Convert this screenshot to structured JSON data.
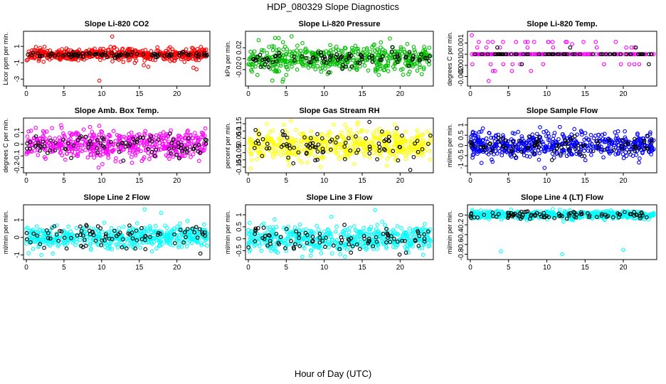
{
  "page": {
    "title": "HDP_080329  Slope Diagnostics",
    "xlabel": "Hour of Day (UTC)"
  },
  "chart_data": [
    {
      "type": "scatter",
      "title": "Slope Li-820 CO2",
      "ylabel": "Licor ppm per min.",
      "color": "#ff0000",
      "xlim": [
        0,
        24
      ],
      "ylim": [
        -3.5,
        2.5
      ],
      "xticks": [
        0,
        5,
        10,
        15,
        20
      ],
      "yticks": [
        1,
        -1,
        -3
      ],
      "n_points": 520,
      "center": 0.0,
      "spread": 0.35,
      "n_overlay": 90,
      "overlay_spread": 0.15,
      "outliers": [
        [
          11.4,
          2.2
        ],
        [
          9.7,
          -3.2
        ],
        [
          22.6,
          -1.8
        ],
        [
          22.2,
          -1.6
        ],
        [
          16.2,
          -1.5
        ],
        [
          15.6,
          -1.3
        ],
        [
          14.4,
          -1.0
        ],
        [
          21.0,
          -0.9
        ],
        [
          11.7,
          0.9
        ]
      ]
    },
    {
      "type": "scatter",
      "title": "Slope Li-820 Pressure",
      "ylabel": "kPa per min.",
      "color": "#00c000",
      "xlim": [
        0,
        24
      ],
      "ylim": [
        -0.045,
        0.045
      ],
      "xticks": [
        0,
        5,
        10,
        15,
        20
      ],
      "yticks": [
        0.02,
        0.0,
        -0.02
      ],
      "n_points": 520,
      "center": 0.0,
      "spread": 0.012,
      "n_overlay": 90,
      "overlay_spread": 0.007,
      "outliers": [
        [
          5.7,
          0.041
        ],
        [
          4.6,
          -0.038
        ],
        [
          16.6,
          0.026
        ],
        [
          16.3,
          0.021
        ],
        [
          5.0,
          -0.03
        ],
        [
          1.2,
          -0.03
        ]
      ]
    },
    {
      "type": "scatter",
      "title": "Slope Li-820 Temp.",
      "ylabel": "degrees C per min.",
      "color": "#ff00ff",
      "xlim": [
        0,
        24
      ],
      "ylim": [
        -0.0026,
        0.0018
      ],
      "xticks": [
        0,
        5,
        10,
        15,
        20
      ],
      "yticks": [
        0.001,
        0.0,
        -0.001,
        -0.002
      ],
      "quantized": true,
      "levels": [
        0.0,
        0.0006,
        -0.0009,
        -0.0015,
        0.0011,
        -0.0024
      ],
      "n_points": 240,
      "n_overlay": 70,
      "outliers": [
        [
          0.2,
          0.0017
        ],
        [
          2.4,
          -0.0024
        ],
        [
          13.3,
          0.0009
        ],
        [
          14.8,
          0.0011
        ]
      ]
    },
    {
      "type": "scatter",
      "title": "Slope Amb. Box Temp.",
      "ylabel": "degrees C per min.",
      "color": "#ff00ff",
      "xlim": [
        0,
        24
      ],
      "ylim": [
        -0.22,
        0.2
      ],
      "xticks": [
        0,
        5,
        10,
        15,
        20
      ],
      "yticks": [
        0.1,
        0.0,
        -0.1,
        -0.2
      ],
      "n_points": 520,
      "center": 0.0,
      "spread": 0.06,
      "n_overlay": 90,
      "overlay_spread": 0.05,
      "outliers": [
        [
          9.6,
          -0.2
        ],
        [
          4.7,
          0.14
        ],
        [
          10.1,
          -0.17
        ],
        [
          0.3,
          0.11
        ]
      ]
    },
    {
      "type": "scatter",
      "title": "Slope Gas Stream RH",
      "ylabel": "percent per min.",
      "color": "#ffff00",
      "xlim": [
        0,
        24
      ],
      "ylim": [
        -0.17,
        0.17
      ],
      "xticks": [
        0,
        5,
        10,
        15,
        20
      ],
      "yticks": [
        0.15,
        0.1,
        0.05,
        0.0,
        -0.05,
        -0.1,
        -0.15
      ],
      "n_points": 520,
      "center": 0.0,
      "spread": 0.05,
      "n_overlay": 90,
      "overlay_spread": 0.05,
      "outliers": [
        [
          14.4,
          0.16
        ],
        [
          0.3,
          -0.16
        ],
        [
          9.5,
          -0.15
        ]
      ]
    },
    {
      "type": "scatter",
      "title": "Slope Sample Flow",
      "ylabel": "ml/min per min.",
      "color": "#0000ff",
      "xlim": [
        0,
        24
      ],
      "ylim": [
        -1.2,
        1.2
      ],
      "xticks": [
        0,
        5,
        10,
        15,
        20
      ],
      "yticks": [
        1.0,
        0.5,
        0.0,
        -0.5,
        -1.0
      ],
      "n_points": 520,
      "center": 0.0,
      "spread": 0.3,
      "n_overlay": 90,
      "overlay_spread": 0.25,
      "outliers": [
        [
          9.7,
          -1.1
        ],
        [
          11.7,
          0.9
        ],
        [
          13.6,
          0.8
        ],
        [
          2.9,
          -0.8
        ]
      ]
    },
    {
      "type": "scatter",
      "title": "Slope Line 2 Flow",
      "ylabel": "ml/min per min.",
      "color": "#00ffff",
      "xlim": [
        0,
        24
      ],
      "ylim": [
        -1.1,
        1.7
      ],
      "xticks": [
        0,
        5,
        10,
        15,
        20
      ],
      "yticks": [
        1.0,
        0.0,
        -1.0
      ],
      "n_points": 520,
      "center": 0.0,
      "spread": 0.3,
      "n_overlay": 90,
      "overlay_spread": 0.35,
      "outliers": [
        [
          15.7,
          1.6
        ],
        [
          17.9,
          1.4
        ],
        [
          0.3,
          -0.9
        ],
        [
          2.0,
          -1.0
        ],
        [
          16.7,
          -0.8
        ],
        [
          3.5,
          0.6
        ]
      ]
    },
    {
      "type": "scatter",
      "title": "Slope Line 3 Flow",
      "ylabel": "ml/min per min.",
      "color": "#00ffff",
      "xlim": [
        0,
        24
      ],
      "ylim": [
        -0.75,
        1.3
      ],
      "xticks": [
        0,
        5,
        10,
        15,
        20
      ],
      "yticks": [
        1.0,
        0.5,
        0.0,
        -0.5
      ],
      "n_points": 520,
      "center": 0.0,
      "spread": 0.25,
      "n_overlay": 90,
      "overlay_spread": 0.25,
      "outliers": [
        [
          16.7,
          1.2
        ],
        [
          9.6,
          -0.6
        ],
        [
          3.0,
          -0.5
        ],
        [
          7.4,
          -0.4
        ]
      ]
    },
    {
      "type": "scatter",
      "title": "Slope Line 4 (LT) Flow",
      "ylabel": "ml/min per min.",
      "color": "#00ffff",
      "xlim": [
        0,
        24
      ],
      "ylim": [
        -0.85,
        0.15
      ],
      "xticks": [
        0,
        5,
        10,
        15,
        20
      ],
      "yticks": [
        0.0,
        -0.2,
        -0.4,
        -0.6,
        -0.8
      ],
      "n_points": 520,
      "center": 0.0,
      "spread": 0.04,
      "n_overlay": 90,
      "overlay_spread": 0.04,
      "outliers": [
        [
          4.0,
          -0.74
        ],
        [
          12.0,
          -0.8
        ],
        [
          20.0,
          -0.71
        ]
      ]
    }
  ]
}
